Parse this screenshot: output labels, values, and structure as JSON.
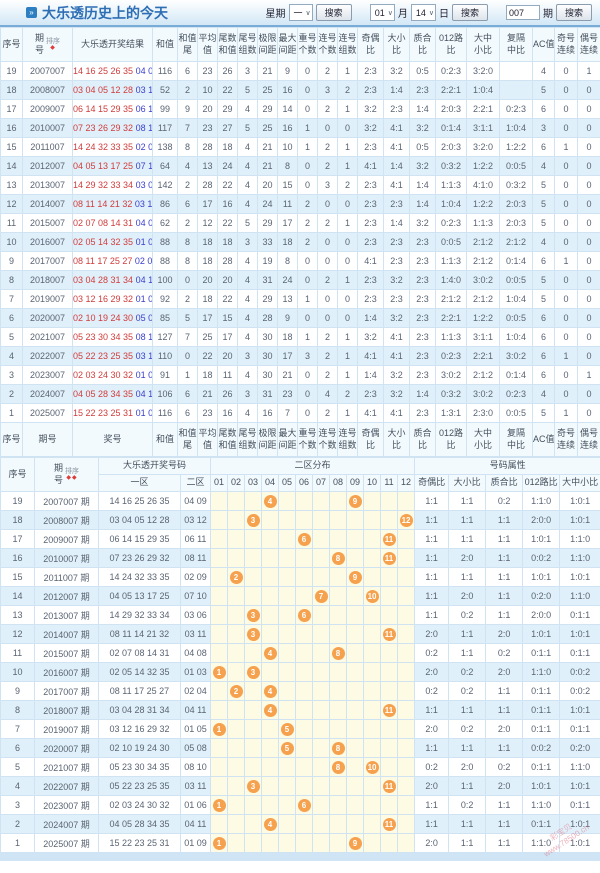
{
  "title": "大乐透历史上的今天",
  "search_bar": {
    "week_label": "星期",
    "week_value": "一",
    "week_search_button": "搜索",
    "month_value": "01",
    "month_label": "月",
    "day_value": "14",
    "day_label": "日",
    "date_search_button": "搜索",
    "issue_value": "007",
    "issue_label": "期",
    "issue_search_button": "搜索"
  },
  "colors": {
    "accent": "#2e6eb5",
    "header_bg": "#f3fafe",
    "row_alt": "#e0f0fa",
    "border": "#cfe3f2",
    "front_red": "#d03c3c",
    "back_blue": "#3a3ecb",
    "ball": "#f5a14e",
    "zone_bg": "#fdfbe4"
  },
  "table1": {
    "sort_label": "排序",
    "headers": [
      {
        "l1": "序号"
      },
      {
        "l1": "期",
        "l2": "号",
        "sort": true
      },
      {
        "l1": "大乐透开奖结果"
      },
      {
        "l1": "和值"
      },
      {
        "l1": "和值",
        "l2": "尾"
      },
      {
        "l1": "平均",
        "l2": "值"
      },
      {
        "l1": "尾数",
        "l2": "和值"
      },
      {
        "l1": "尾号",
        "l2": "组数"
      },
      {
        "l1": "极限",
        "l2": "间距"
      },
      {
        "l1": "最大",
        "l2": "间距"
      },
      {
        "l1": "重号",
        "l2": "个数"
      },
      {
        "l1": "连号",
        "l2": "个数"
      },
      {
        "l1": "连号",
        "l2": "组数"
      },
      {
        "l1": "奇偶",
        "l2": "比"
      },
      {
        "l1": "大小",
        "l2": "比"
      },
      {
        "l1": "质合",
        "l2": "比"
      },
      {
        "l1": "012路",
        "l2": "比"
      },
      {
        "l1": "大中",
        "l2": "小比"
      },
      {
        "l1": "复隔",
        "l2": "中比"
      },
      {
        "l1": "AC值"
      },
      {
        "l1": "奇号",
        "l2": "连续"
      },
      {
        "l1": "偶号",
        "l2": "连续"
      }
    ],
    "footer_headers": [
      {
        "l1": "序号"
      },
      {
        "l1": "期号"
      },
      {
        "l1": "奖号"
      },
      {
        "l1": "和值"
      },
      {
        "l1": "和值",
        "l2": "尾"
      },
      {
        "l1": "平均",
        "l2": "值"
      },
      {
        "l1": "尾数",
        "l2": "和值"
      },
      {
        "l1": "尾号",
        "l2": "组数"
      },
      {
        "l1": "极限",
        "l2": "间距"
      },
      {
        "l1": "最大",
        "l2": "间距"
      },
      {
        "l1": "重号",
        "l2": "个数"
      },
      {
        "l1": "连号",
        "l2": "个数"
      },
      {
        "l1": "连号",
        "l2": "组数"
      },
      {
        "l1": "奇偶",
        "l2": "比"
      },
      {
        "l1": "大小",
        "l2": "比"
      },
      {
        "l1": "质合",
        "l2": "比"
      },
      {
        "l1": "012路",
        "l2": "比"
      },
      {
        "l1": "大中",
        "l2": "小比"
      },
      {
        "l1": "复隔",
        "l2": "中比"
      },
      {
        "l1": "AC值"
      },
      {
        "l1": "奇号",
        "l2": "连续"
      },
      {
        "l1": "偶号",
        "l2": "连续"
      }
    ],
    "rows": [
      {
        "seq": "19",
        "issue": "2007007",
        "front": "14 16 25 26 35",
        "back": "04 09",
        "vals": [
          "116",
          "6",
          "23",
          "26",
          "3",
          "21",
          "9",
          "0",
          "2",
          "1",
          "2:3",
          "3:2",
          "0:5",
          "0:2:3",
          "3:2:0",
          "",
          "4",
          "0",
          "1"
        ]
      },
      {
        "seq": "18",
        "issue": "2008007",
        "front": "03 04 05 12 28",
        "back": "03 12",
        "vals": [
          "52",
          "2",
          "10",
          "22",
          "5",
          "25",
          "16",
          "0",
          "3",
          "2",
          "2:3",
          "1:4",
          "2:3",
          "2:2:1",
          "1:0:4",
          "",
          "5",
          "0",
          "0"
        ]
      },
      {
        "seq": "17",
        "issue": "2009007",
        "front": "06 14 15 29 35",
        "back": "06 11",
        "vals": [
          "99",
          "9",
          "20",
          "29",
          "4",
          "29",
          "14",
          "0",
          "2",
          "1",
          "3:2",
          "2:3",
          "1:4",
          "2:0:3",
          "2:2:1",
          "0:2:3",
          "6",
          "0",
          "0"
        ]
      },
      {
        "seq": "16",
        "issue": "2010007",
        "front": "07 23 26 29 32",
        "back": "08 11",
        "vals": [
          "117",
          "7",
          "23",
          "27",
          "5",
          "25",
          "16",
          "1",
          "0",
          "0",
          "3:2",
          "4:1",
          "3:2",
          "0:1:4",
          "3:1:1",
          "1:0:4",
          "3",
          "0",
          "0"
        ]
      },
      {
        "seq": "15",
        "issue": "2011007",
        "front": "14 24 32 33 35",
        "back": "02 09",
        "vals": [
          "138",
          "8",
          "28",
          "18",
          "4",
          "21",
          "10",
          "1",
          "2",
          "1",
          "2:3",
          "4:1",
          "0:5",
          "2:0:3",
          "3:2:0",
          "1:2:2",
          "6",
          "1",
          "0"
        ]
      },
      {
        "seq": "14",
        "issue": "2012007",
        "front": "04 05 13 17 25",
        "back": "07 10",
        "vals": [
          "64",
          "4",
          "13",
          "24",
          "4",
          "21",
          "8",
          "0",
          "2",
          "1",
          "4:1",
          "1:4",
          "3:2",
          "0:3:2",
          "1:2:2",
          "0:0:5",
          "4",
          "0",
          "0"
        ]
      },
      {
        "seq": "13",
        "issue": "2013007",
        "front": "14 29 32 33 34",
        "back": "03 06",
        "vals": [
          "142",
          "2",
          "28",
          "22",
          "4",
          "20",
          "15",
          "0",
          "3",
          "2",
          "2:3",
          "4:1",
          "1:4",
          "1:1:3",
          "4:1:0",
          "0:3:2",
          "5",
          "0",
          "0"
        ]
      },
      {
        "seq": "12",
        "issue": "2014007",
        "front": "08 11 14 21 32",
        "back": "03 11",
        "vals": [
          "86",
          "6",
          "17",
          "16",
          "4",
          "24",
          "11",
          "2",
          "0",
          "0",
          "2:3",
          "2:3",
          "1:4",
          "1:0:4",
          "1:2:2",
          "2:0:3",
          "5",
          "0",
          "0"
        ]
      },
      {
        "seq": "11",
        "issue": "2015007",
        "front": "02 07 08 14 31",
        "back": "04 08",
        "vals": [
          "62",
          "2",
          "12",
          "22",
          "5",
          "29",
          "17",
          "2",
          "2",
          "1",
          "2:3",
          "1:4",
          "3:2",
          "0:2:3",
          "1:1:3",
          "2:0:3",
          "5",
          "0",
          "0"
        ]
      },
      {
        "seq": "10",
        "issue": "2016007",
        "front": "02 05 14 32 35",
        "back": "01 03",
        "vals": [
          "88",
          "8",
          "18",
          "18",
          "3",
          "33",
          "18",
          "2",
          "0",
          "0",
          "2:3",
          "2:3",
          "2:3",
          "0:0:5",
          "2:1:2",
          "2:1:2",
          "4",
          "0",
          "0"
        ]
      },
      {
        "seq": "9",
        "issue": "2017007",
        "front": "08 11 17 25 27",
        "back": "02 04",
        "vals": [
          "88",
          "8",
          "18",
          "28",
          "4",
          "19",
          "8",
          "0",
          "0",
          "0",
          "4:1",
          "2:3",
          "2:3",
          "1:1:3",
          "2:1:2",
          "0:1:4",
          "6",
          "1",
          "0"
        ]
      },
      {
        "seq": "8",
        "issue": "2018007",
        "front": "03 04 28 31 34",
        "back": "04 11",
        "vals": [
          "100",
          "0",
          "20",
          "20",
          "4",
          "31",
          "24",
          "0",
          "2",
          "1",
          "2:3",
          "3:2",
          "2:3",
          "1:4:0",
          "3:0:2",
          "0:0:5",
          "5",
          "0",
          "0"
        ]
      },
      {
        "seq": "7",
        "issue": "2019007",
        "front": "03 12 16 29 32",
        "back": "01 05",
        "vals": [
          "92",
          "2",
          "18",
          "22",
          "4",
          "29",
          "13",
          "1",
          "0",
          "0",
          "2:3",
          "2:3",
          "2:3",
          "2:1:2",
          "2:1:2",
          "1:0:4",
          "5",
          "0",
          "0"
        ]
      },
      {
        "seq": "6",
        "issue": "2020007",
        "front": "02 10 19 24 30",
        "back": "05 08",
        "vals": [
          "85",
          "5",
          "17",
          "15",
          "4",
          "28",
          "9",
          "0",
          "0",
          "0",
          "1:4",
          "3:2",
          "2:3",
          "2:2:1",
          "1:2:2",
          "0:0:5",
          "6",
          "0",
          "0"
        ]
      },
      {
        "seq": "5",
        "issue": "2021007",
        "front": "05 23 30 34 35",
        "back": "08 10",
        "vals": [
          "127",
          "7",
          "25",
          "17",
          "4",
          "30",
          "18",
          "1",
          "2",
          "1",
          "3:2",
          "4:1",
          "2:3",
          "1:1:3",
          "3:1:1",
          "1:0:4",
          "6",
          "0",
          "0"
        ]
      },
      {
        "seq": "4",
        "issue": "2022007",
        "front": "05 22 23 25 35",
        "back": "03 11",
        "vals": [
          "110",
          "0",
          "22",
          "20",
          "3",
          "30",
          "17",
          "3",
          "2",
          "1",
          "4:1",
          "4:1",
          "2:3",
          "0:2:3",
          "2:2:1",
          "3:0:2",
          "6",
          "1",
          "0"
        ]
      },
      {
        "seq": "3",
        "issue": "2023007",
        "front": "02 03 24 30 32",
        "back": "01 06",
        "vals": [
          "91",
          "1",
          "18",
          "11",
          "4",
          "30",
          "21",
          "0",
          "2",
          "1",
          "1:4",
          "3:2",
          "2:3",
          "3:0:2",
          "2:1:2",
          "0:1:4",
          "6",
          "0",
          "1"
        ]
      },
      {
        "seq": "2",
        "issue": "2024007",
        "front": "04 05 28 34 35",
        "back": "04 11",
        "vals": [
          "106",
          "6",
          "21",
          "26",
          "3",
          "31",
          "23",
          "0",
          "4",
          "2",
          "2:3",
          "3:2",
          "1:4",
          "0:3:2",
          "3:0:2",
          "0:2:3",
          "4",
          "0",
          "0"
        ]
      },
      {
        "seq": "1",
        "issue": "2025007",
        "front": "15 22 23 25 31",
        "back": "01 09",
        "vals": [
          "116",
          "6",
          "23",
          "16",
          "4",
          "16",
          "7",
          "0",
          "2",
          "1",
          "4:1",
          "4:1",
          "2:3",
          "1:3:1",
          "2:3:0",
          "0:0:5",
          "5",
          "1",
          "0"
        ]
      }
    ]
  },
  "table2": {
    "sort_label": "排序",
    "header": {
      "seq": "序号",
      "qi": "期",
      "hao": "号",
      "numbers_group": "大乐透开奖号码",
      "zone2_group": "二区分布",
      "attrs_group": "号码属性",
      "zone1": "一区",
      "zone2": "二区",
      "ball_cols": [
        "01",
        "02",
        "03",
        "04",
        "05",
        "06",
        "07",
        "08",
        "09",
        "10",
        "11",
        "12"
      ],
      "attr_cols": [
        "奇偶比",
        "大小比",
        "质合比",
        "012路比",
        "大中小比"
      ]
    },
    "rows": [
      {
        "seq": "19",
        "issue": "2007007 期",
        "front": "14 16 25 26 35",
        "back": "04 09",
        "balls": [
          4,
          9
        ],
        "attrs": [
          "1:1",
          "1:1",
          "0:2",
          "1:1:0",
          "1:0:1"
        ]
      },
      {
        "seq": "18",
        "issue": "2008007 期",
        "front": "03 04 05 12 28",
        "back": "03 12",
        "balls": [
          3,
          12
        ],
        "attrs": [
          "1:1",
          "1:1",
          "1:1",
          "2:0:0",
          "1:0:1"
        ]
      },
      {
        "seq": "17",
        "issue": "2009007 期",
        "front": "06 14 15 29 35",
        "back": "06 11",
        "balls": [
          6,
          11
        ],
        "attrs": [
          "1:1",
          "1:1",
          "1:1",
          "1:0:1",
          "1:1:0"
        ]
      },
      {
        "seq": "16",
        "issue": "2010007 期",
        "front": "07 23 26 29 32",
        "back": "08 11",
        "balls": [
          8,
          11
        ],
        "attrs": [
          "1:1",
          "2:0",
          "1:1",
          "0:0:2",
          "1:1:0"
        ]
      },
      {
        "seq": "15",
        "issue": "2011007 期",
        "front": "14 24 32 33 35",
        "back": "02 09",
        "balls": [
          2,
          9
        ],
        "attrs": [
          "1:1",
          "1:1",
          "1:1",
          "1:0:1",
          "1:0:1"
        ]
      },
      {
        "seq": "14",
        "issue": "2012007 期",
        "front": "04 05 13 17 25",
        "back": "07 10",
        "balls": [
          7,
          10
        ],
        "attrs": [
          "1:1",
          "2:0",
          "1:1",
          "0:2:0",
          "1:1:0"
        ]
      },
      {
        "seq": "13",
        "issue": "2013007 期",
        "front": "14 29 32 33 34",
        "back": "03 06",
        "balls": [
          3,
          6
        ],
        "attrs": [
          "1:1",
          "0:2",
          "1:1",
          "2:0:0",
          "0:1:1"
        ]
      },
      {
        "seq": "12",
        "issue": "2014007 期",
        "front": "08 11 14 21 32",
        "back": "03 11",
        "balls": [
          3,
          11
        ],
        "attrs": [
          "2:0",
          "1:1",
          "2:0",
          "1:0:1",
          "1:0:1"
        ]
      },
      {
        "seq": "11",
        "issue": "2015007 期",
        "front": "02 07 08 14 31",
        "back": "04 08",
        "balls": [
          4,
          8
        ],
        "attrs": [
          "0:2",
          "1:1",
          "0:2",
          "0:1:1",
          "0:1:1"
        ]
      },
      {
        "seq": "10",
        "issue": "2016007 期",
        "front": "02 05 14 32 35",
        "back": "01 03",
        "balls": [
          1,
          3
        ],
        "attrs": [
          "2:0",
          "0:2",
          "2:0",
          "1:1:0",
          "0:0:2"
        ]
      },
      {
        "seq": "9",
        "issue": "2017007 期",
        "front": "08 11 17 25 27",
        "back": "02 04",
        "balls": [
          2,
          4
        ],
        "attrs": [
          "0:2",
          "0:2",
          "1:1",
          "0:1:1",
          "0:0:2"
        ]
      },
      {
        "seq": "8",
        "issue": "2018007 期",
        "front": "03 04 28 31 34",
        "back": "04 11",
        "balls": [
          4,
          11
        ],
        "attrs": [
          "1:1",
          "1:1",
          "1:1",
          "0:1:1",
          "1:0:1"
        ]
      },
      {
        "seq": "7",
        "issue": "2019007 期",
        "front": "03 12 16 29 32",
        "back": "01 05",
        "balls": [
          1,
          5
        ],
        "attrs": [
          "2:0",
          "0:2",
          "2:0",
          "0:1:1",
          "0:1:1"
        ]
      },
      {
        "seq": "6",
        "issue": "2020007 期",
        "front": "02 10 19 24 30",
        "back": "05 08",
        "balls": [
          5,
          8
        ],
        "attrs": [
          "1:1",
          "1:1",
          "1:1",
          "0:0:2",
          "0:2:0"
        ]
      },
      {
        "seq": "5",
        "issue": "2021007 期",
        "front": "05 23 30 34 35",
        "back": "08 10",
        "balls": [
          8,
          10
        ],
        "attrs": [
          "0:2",
          "2:0",
          "0:2",
          "0:1:1",
          "1:1:0"
        ]
      },
      {
        "seq": "4",
        "issue": "2022007 期",
        "front": "05 22 23 25 35",
        "back": "03 11",
        "balls": [
          3,
          11
        ],
        "attrs": [
          "2:0",
          "1:1",
          "2:0",
          "1:0:1",
          "1:0:1"
        ]
      },
      {
        "seq": "3",
        "issue": "2023007 期",
        "front": "02 03 24 30 32",
        "back": "01 06",
        "balls": [
          1,
          6
        ],
        "attrs": [
          "1:1",
          "0:2",
          "1:1",
          "1:1:0",
          "0:1:1"
        ]
      },
      {
        "seq": "2",
        "issue": "2024007 期",
        "front": "04 05 28 34 35",
        "back": "04 11",
        "balls": [
          4,
          11
        ],
        "attrs": [
          "1:1",
          "1:1",
          "1:1",
          "0:1:1",
          "1:0:1"
        ]
      },
      {
        "seq": "1",
        "issue": "2025007 期",
        "front": "15 22 23 25 31",
        "back": "01 09",
        "balls": [
          1,
          9
        ],
        "attrs": [
          "2:0",
          "1:1",
          "1:1",
          "1:1:0",
          "1:0:1"
        ]
      }
    ]
  },
  "watermark": {
    "line1": "彩宝贝",
    "line2": "www.78500.cn"
  }
}
